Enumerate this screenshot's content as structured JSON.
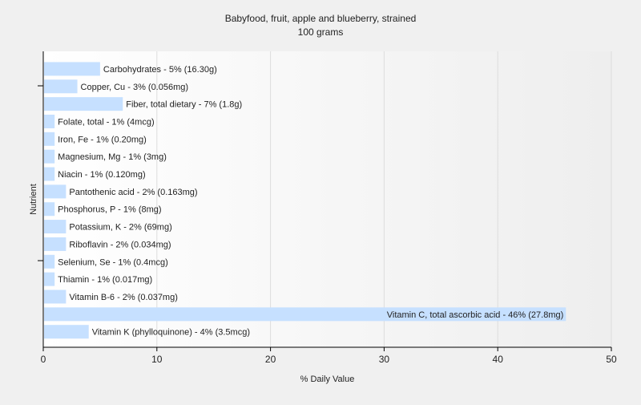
{
  "chart_data": {
    "type": "bar",
    "orientation": "horizontal",
    "title": "Babyfood, fruit, apple and blueberry, strained",
    "subtitle": "100 grams",
    "xlabel": "% Daily Value",
    "ylabel": "Nutrient",
    "xlim": [
      0,
      50
    ],
    "xticks": [
      0,
      10,
      20,
      30,
      40,
      50
    ],
    "grid": true,
    "bar_color": "#c6e0ff",
    "categories": [
      "Carbohydrates",
      "Copper, Cu",
      "Fiber, total dietary",
      "Folate, total",
      "Iron, Fe",
      "Magnesium, Mg",
      "Niacin",
      "Pantothenic acid",
      "Phosphorus, P",
      "Potassium, K",
      "Riboflavin",
      "Selenium, Se",
      "Thiamin",
      "Vitamin B-6",
      "Vitamin C, total ascorbic acid",
      "Vitamin K (phylloquinone)"
    ],
    "values": [
      5,
      3,
      7,
      1,
      1,
      1,
      1,
      2,
      1,
      2,
      2,
      1,
      1,
      2,
      46,
      4
    ],
    "labels": [
      "Carbohydrates - 5% (16.30g)",
      "Copper, Cu - 3% (0.056mg)",
      "Fiber, total dietary - 7% (1.8g)",
      "Folate, total - 1% (4mcg)",
      "Iron, Fe - 1% (0.20mg)",
      "Magnesium, Mg - 1% (3mg)",
      "Niacin - 1% (0.120mg)",
      "Pantothenic acid - 2% (0.163mg)",
      "Phosphorus, P - 1% (8mg)",
      "Potassium, K - 2% (69mg)",
      "Riboflavin - 2% (0.034mg)",
      "Selenium, Se - 1% (0.4mcg)",
      "Thiamin - 1% (0.017mg)",
      "Vitamin B-6 - 2% (0.037mg)",
      "Vitamin C, total ascorbic acid - 46% (27.8mg)",
      "Vitamin K (phylloquinone) - 4% (3.5mcg)"
    ]
  }
}
